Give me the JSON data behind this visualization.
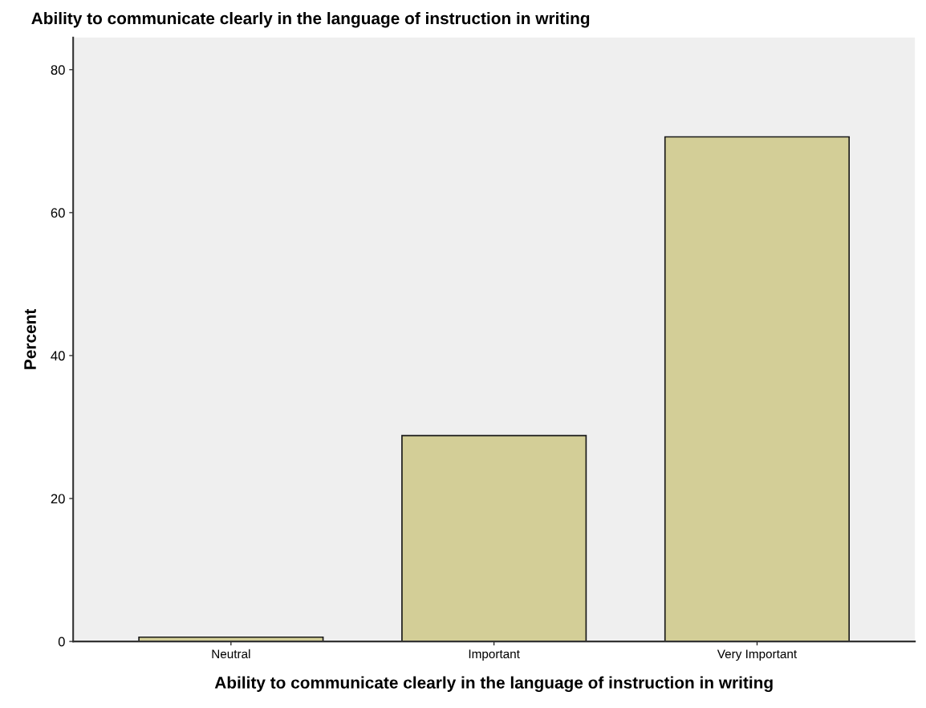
{
  "chart_data": {
    "type": "bar",
    "title": "Ability to communicate clearly in the language of instruction in writing",
    "xlabel": "Ability to communicate clearly in the language of instruction in writing",
    "ylabel": "Percent",
    "categories": [
      "Neutral",
      "Important",
      "Very Important"
    ],
    "values": [
      0.6,
      28.8,
      70.6
    ],
    "color": "#d3ce97",
    "ylim": [
      0,
      84.5
    ],
    "yticks": [
      0,
      20,
      40,
      60,
      80
    ],
    "grid": false
  }
}
